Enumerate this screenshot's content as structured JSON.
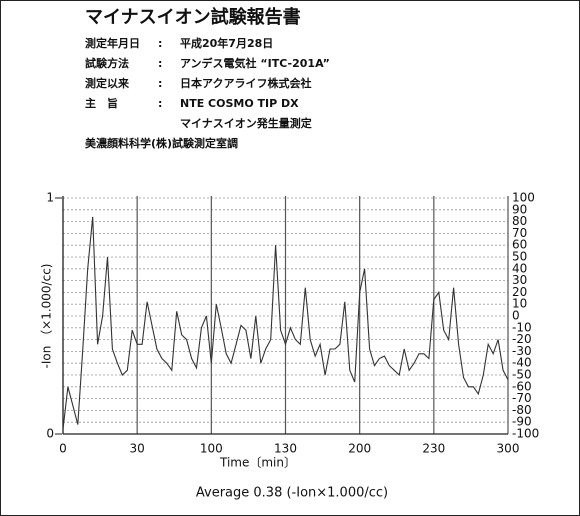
{
  "header": {
    "title": "マイナスイオン試験報告書",
    "separator": ":",
    "rows": [
      {
        "label": "測定年月日",
        "value": "平成20年7月28日"
      },
      {
        "label": "試験方法",
        "value": "アンデス電気社 “ITC-201A”"
      },
      {
        "label": "測定以来",
        "value": "日本アクアライフ株式会社"
      },
      {
        "label": "主　旨",
        "value": "NTE COSMO TIP DX"
      }
    ],
    "note": "マイナスイオン発生量測定",
    "issuer": "美濃顔料科学(株)試験測定室調"
  },
  "chart_data": {
    "type": "line",
    "xlabel": "Time〔min〕",
    "ylabel": "-Ion （×1.000/cc)",
    "caption": "Average  0.38 (-Ion×1.000/cc)",
    "color": "#333333",
    "x": [
      0,
      2,
      4,
      6,
      8,
      10,
      12,
      14,
      16,
      18,
      20,
      22,
      24,
      26,
      28,
      30,
      32,
      34,
      36,
      38,
      40,
      42,
      44,
      46,
      48,
      50,
      52,
      54,
      56,
      58,
      60,
      62,
      64,
      66,
      68,
      70,
      72,
      74,
      76,
      78,
      80,
      82,
      84,
      86,
      88,
      90,
      92,
      94,
      96,
      98,
      100,
      102,
      104,
      106,
      108,
      110,
      112,
      114,
      116,
      118,
      120,
      122,
      124,
      126,
      128,
      130,
      132,
      134,
      136,
      138,
      140,
      142,
      144,
      146,
      148,
      150,
      152,
      154,
      156,
      158,
      160,
      162,
      164,
      166,
      168,
      170,
      172,
      174,
      176,
      178,
      180
    ],
    "values": [
      0.02,
      0.2,
      0.12,
      0.04,
      0.36,
      0.7,
      0.92,
      0.38,
      0.5,
      0.75,
      0.36,
      0.3,
      0.25,
      0.27,
      0.44,
      0.38,
      0.38,
      0.56,
      0.46,
      0.36,
      0.32,
      0.3,
      0.27,
      0.52,
      0.42,
      0.4,
      0.32,
      0.28,
      0.45,
      0.5,
      0.3,
      0.55,
      0.45,
      0.34,
      0.3,
      0.38,
      0.46,
      0.44,
      0.32,
      0.5,
      0.3,
      0.36,
      0.4,
      0.8,
      0.44,
      0.38,
      0.45,
      0.4,
      0.38,
      0.62,
      0.4,
      0.33,
      0.38,
      0.25,
      0.36,
      0.36,
      0.38,
      0.56,
      0.27,
      0.22,
      0.6,
      0.7,
      0.36,
      0.29,
      0.32,
      0.33,
      0.29,
      0.27,
      0.25,
      0.36,
      0.27,
      0.3,
      0.34,
      0.34,
      0.32,
      0.57,
      0.6,
      0.44,
      0.4,
      0.62,
      0.38,
      0.24,
      0.2,
      0.2,
      0.17,
      0.25,
      0.38,
      0.34,
      0.4,
      0.27,
      0.23
    ],
    "xlim": [
      0,
      180
    ],
    "xticks": [
      0,
      30,
      {
        "value": 60,
        "label": "100"
      },
      {
        "value": 90,
        "label": "130"
      },
      {
        "value": 120,
        "label": "200"
      },
      {
        "value": 150,
        "label": "230"
      },
      {
        "value": 180,
        "label": "300"
      }
    ],
    "ylim": [
      0,
      1
    ],
    "yticks": [
      0,
      1
    ],
    "y2lim": [
      -100,
      100
    ],
    "y2ticks": [
      100,
      90,
      80,
      70,
      60,
      50,
      40,
      30,
      20,
      10,
      0,
      -10,
      -20,
      -30,
      -40,
      -50,
      -60,
      -70,
      -80,
      -90,
      -100
    ],
    "grid": true
  }
}
